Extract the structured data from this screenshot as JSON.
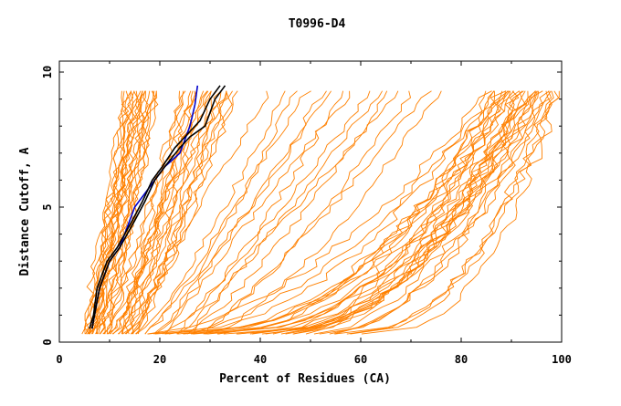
{
  "chart_data": {
    "type": "line",
    "title": "T0996-D4",
    "xlabel": "Percent of Residues (CA)",
    "ylabel": "Distance Cutoff, A",
    "xlim": [
      0,
      100
    ],
    "ylim": [
      0,
      10
    ],
    "x_ticks": [
      "0",
      "20",
      "40",
      "60",
      "80",
      "100"
    ],
    "y_ticks": [
      "0",
      "5",
      "10"
    ],
    "grid": false,
    "legend": "none",
    "colors": {
      "models": "#ff8000",
      "highlight_blue": "#0000cc",
      "highlight_black": "#000000"
    },
    "y_levels": [
      0.5,
      1,
      2,
      3,
      4,
      5,
      6,
      7,
      8,
      9,
      9.5
    ],
    "model_families": [
      {
        "name": "low",
        "count": 22,
        "x_start": [
          4.5,
          9
        ],
        "x_end": [
          13,
          20
        ]
      },
      {
        "name": "mid",
        "count": 20,
        "x_start": [
          9,
          16
        ],
        "x_end": [
          24,
          36
        ]
      },
      {
        "name": "upper",
        "count": 15,
        "x_start": [
          14,
          30
        ],
        "x_end": [
          42,
          78
        ]
      },
      {
        "name": "high",
        "count": 34,
        "x_start": [
          16,
          60
        ],
        "x_end": [
          86,
          100
        ]
      }
    ],
    "series": [
      {
        "name": "",
        "color": "#0000cc",
        "x": [
          6.5,
          7,
          8,
          10,
          12,
          13,
          15,
          17,
          19,
          21,
          24,
          25,
          26,
          27,
          27.5
        ],
        "y": [
          0.5,
          1,
          2,
          3,
          3.5,
          4,
          5,
          5.5,
          6,
          6.5,
          7,
          7.5,
          8,
          8.8,
          9.5
        ]
      },
      {
        "name": "",
        "color": "#000000",
        "x": [
          6.5,
          7,
          8,
          10,
          12,
          13.5,
          15,
          17,
          19,
          21,
          24,
          26,
          29,
          31,
          33
        ],
        "y": [
          0.5,
          1,
          2,
          3,
          3.5,
          4,
          4.5,
          5.2,
          6,
          6.5,
          7.2,
          7.6,
          8,
          9,
          9.5
        ]
      },
      {
        "name": "",
        "color": "#000000",
        "x": [
          6,
          6.8,
          7.5,
          9.5,
          11.5,
          13,
          14.5,
          16.5,
          18.5,
          20.5,
          23,
          25,
          28,
          30,
          32
        ],
        "y": [
          0.5,
          1,
          2,
          3,
          3.5,
          4,
          4.5,
          5.2,
          6,
          6.5,
          7.2,
          7.6,
          8.2,
          9,
          9.5
        ]
      }
    ]
  }
}
